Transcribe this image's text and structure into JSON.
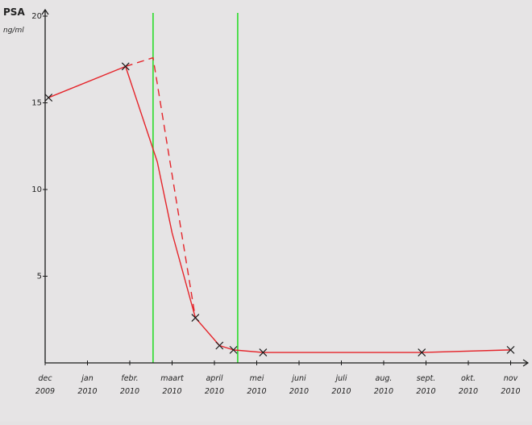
{
  "chart_data": {
    "type": "line",
    "ylabel": "PSA",
    "yunit": "ng/ml",
    "ylim": [
      0,
      20
    ],
    "yticks": [
      5,
      10,
      15,
      20
    ],
    "xticks": [
      {
        "month": "dec",
        "year": "2009",
        "x": 0
      },
      {
        "month": "jan",
        "year": "2010",
        "x": 1
      },
      {
        "month": "febr.",
        "year": "2010",
        "x": 2
      },
      {
        "month": "maart",
        "year": "2010",
        "x": 3
      },
      {
        "month": "april",
        "year": "2010",
        "x": 4
      },
      {
        "month": "mei",
        "year": "2010",
        "x": 5
      },
      {
        "month": "juni",
        "year": "2010",
        "x": 6
      },
      {
        "month": "juli",
        "year": "2010",
        "x": 7
      },
      {
        "month": "aug.",
        "year": "2010",
        "x": 8
      },
      {
        "month": "sept.",
        "year": "2010",
        "x": 9
      },
      {
        "month": "okt.",
        "year": "2010",
        "x": 10
      },
      {
        "month": "nov",
        "year": "2010",
        "x": 11
      }
    ],
    "series": [
      {
        "style": "solid",
        "color": "#e5242a",
        "points": [
          {
            "x": 0.08,
            "y": 15.3,
            "marker": true
          },
          {
            "x": 1.9,
            "y": 17.1,
            "marker": true
          },
          {
            "x": 2.65,
            "y": 11.6,
            "marker": false
          },
          {
            "x": 3.0,
            "y": 7.5,
            "marker": false
          },
          {
            "x": 3.55,
            "y": 2.6,
            "marker": true
          },
          {
            "x": 4.12,
            "y": 1.0,
            "marker": true
          },
          {
            "x": 4.45,
            "y": 0.75,
            "marker": true
          },
          {
            "x": 5.15,
            "y": 0.6,
            "marker": true
          },
          {
            "x": 8.9,
            "y": 0.6,
            "marker": true
          },
          {
            "x": 11.0,
            "y": 0.75,
            "marker": true
          }
        ]
      },
      {
        "style": "dashed",
        "color": "#e5242a",
        "points": [
          {
            "x": 1.9,
            "y": 17.1
          },
          {
            "x": 2.55,
            "y": 17.6
          },
          {
            "x": 3.55,
            "y": 2.6
          }
        ]
      }
    ],
    "vertical_lines": [
      {
        "x": 2.55,
        "color": "#3ddc3d"
      },
      {
        "x": 4.55,
        "color": "#3ddc3d"
      }
    ],
    "grid": false
  }
}
